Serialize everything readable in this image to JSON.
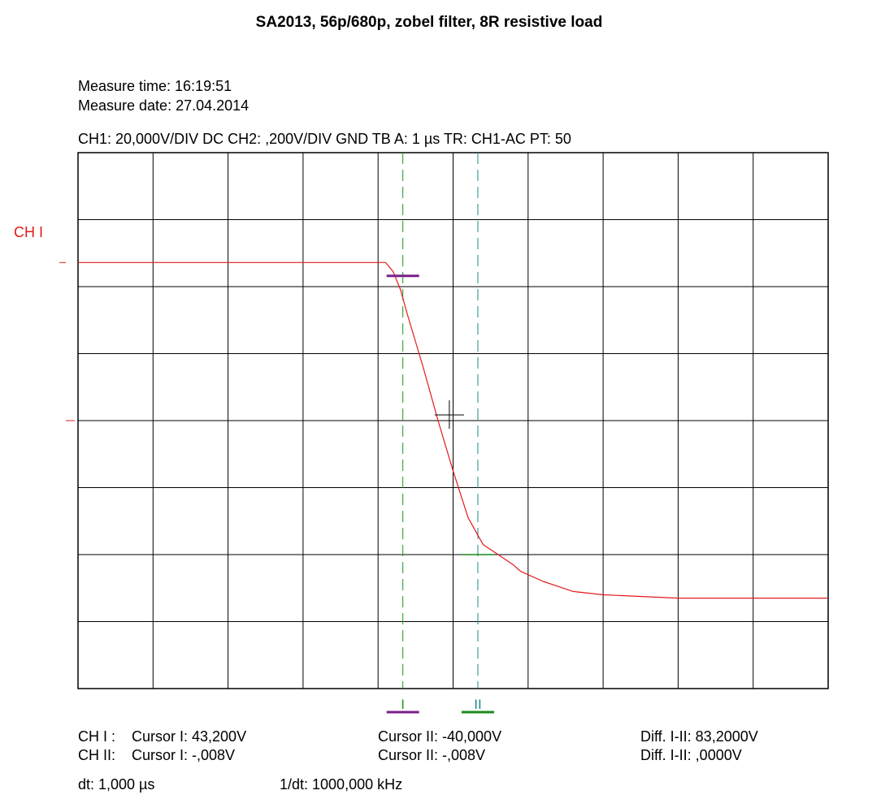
{
  "title": "SA2013, 56p/680p, zobel filter, 8R resistive load",
  "meta": {
    "time": "Measure time: 16:19:51",
    "date": "Measure date: 27.04.2014"
  },
  "settings": "CH1: 20,000V/DIV DC  CH2: ,200V/DIV GND   TB A: 1 µs  TR: CH1-AC  PT: 50",
  "channel_label": "CH I",
  "cursor_labels": {
    "c1": "I",
    "c2": "II"
  },
  "readouts": {
    "row1": {
      "ch": "CH I :",
      "c1": "Cursor I: 43,200V",
      "c2": "Cursor II: -40,000V",
      "diff": "Diff. I-II: 83,2000V"
    },
    "row2": {
      "ch": "CH II:",
      "c1": "Cursor I: -,008V",
      "c2": "Cursor II: -,008V",
      "diff": "Diff. I-II: ,0000V"
    },
    "dt": "dt: 1,000 µs",
    "inv_dt": "1/dt: 1000,000 kHz"
  },
  "colors": {
    "trace": "#e21a1a",
    "cursor1": "#1a9a1a",
    "cursor1_marker": "#7a1f8a",
    "cursor2": "#1a8a8a",
    "cursor2_marker": "#1a8a1a",
    "grid": "#000000"
  },
  "chart_data": {
    "type": "line",
    "title": "SA2013, 56p/680p, zobel filter, 8R resistive load",
    "xlim": [
      0,
      10
    ],
    "ylim": [
      -80,
      80
    ],
    "x_unit": "µs (1 µs/div)",
    "y_unit": "V (20 V/div)",
    "grid": true,
    "divisions": {
      "x": 10,
      "y": 8
    },
    "series": [
      {
        "x": [
          0,
          4.1,
          4.2,
          4.3,
          4.4,
          4.6,
          4.8,
          5.0,
          5.2,
          5.4,
          5.6,
          5.8,
          5.9,
          6.0,
          6.2,
          6.4,
          6.6,
          7.0,
          8.0,
          9.0,
          10.0
        ],
        "y": [
          47.2,
          47.2,
          44.5,
          39.0,
          31.0,
          16.0,
          0,
          -15.0,
          -29.0,
          -37.0,
          -40.0,
          -43.0,
          -45.0,
          -46.0,
          -48.0,
          -49.5,
          -51.0,
          -52.0,
          -53.0,
          -53.0,
          -53.0
        ]
      }
    ],
    "cursors": {
      "I": {
        "x": 4.33,
        "y": 43.2
      },
      "II": {
        "x": 5.33,
        "y": -40.0
      }
    },
    "crosshair": {
      "x": 4.95,
      "y": 0
    }
  }
}
